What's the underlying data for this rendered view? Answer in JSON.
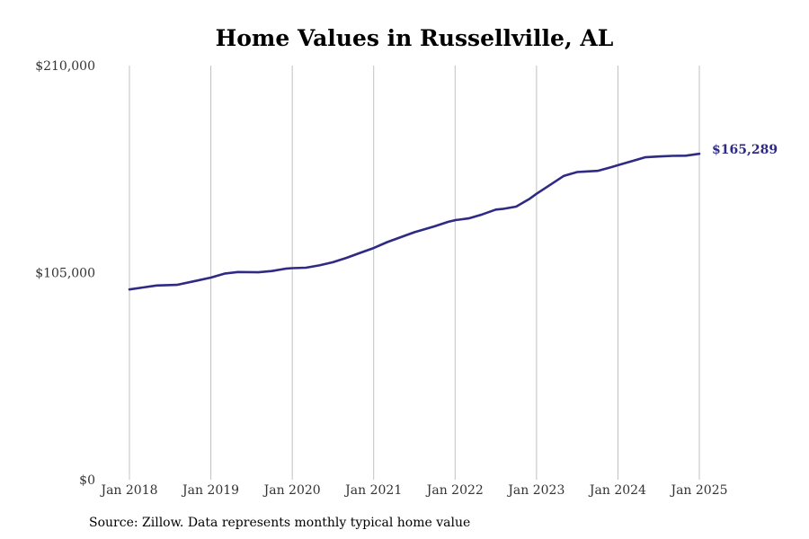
{
  "chart_data": {
    "type": "line",
    "title": "Home Values in Russellville, AL",
    "xlabel": "",
    "ylabel": "",
    "ylim": [
      0,
      210000
    ],
    "yticks": [
      {
        "value": 0,
        "label": "$0"
      },
      {
        "value": 105000,
        "label": "$105,000"
      },
      {
        "value": 210000,
        "label": "$210,000"
      }
    ],
    "xticks": [
      {
        "value": 2018,
        "label": "Jan 2018"
      },
      {
        "value": 2019,
        "label": "Jan 2019"
      },
      {
        "value": 2020,
        "label": "Jan 2020"
      },
      {
        "value": 2021,
        "label": "Jan 2021"
      },
      {
        "value": 2022,
        "label": "Jan 2022"
      },
      {
        "value": 2023,
        "label": "Jan 2023"
      },
      {
        "value": 2024,
        "label": "Jan 2024"
      },
      {
        "value": 2025,
        "label": "Jan 2025"
      }
    ],
    "xlim": [
      2018,
      2025
    ],
    "grid": "vertical",
    "line_color": "#2e2a85",
    "grid_color": "#c0c0c0",
    "end_label": "$165,289",
    "x": [
      2018.0,
      2018.167,
      2018.333,
      2018.583,
      2018.833,
      2019.0,
      2019.167,
      2019.333,
      2019.583,
      2019.75,
      2019.917,
      2020.0,
      2020.167,
      2020.333,
      2020.5,
      2020.667,
      2020.833,
      2021.0,
      2021.167,
      2021.333,
      2021.5,
      2021.75,
      2021.917,
      2022.0,
      2022.167,
      2022.333,
      2022.5,
      2022.583,
      2022.75,
      2022.917,
      2023.0,
      2023.167,
      2023.333,
      2023.5,
      2023.583,
      2023.75,
      2023.917,
      2024.0,
      2024.167,
      2024.333,
      2024.5,
      2024.667,
      2024.833,
      2025.0
    ],
    "values": [
      96500,
      97500,
      98500,
      98800,
      101000,
      102500,
      104500,
      105300,
      105200,
      105800,
      107000,
      107300,
      107500,
      108700,
      110300,
      112500,
      115000,
      117500,
      120500,
      123000,
      125500,
      128500,
      130800,
      131600,
      132500,
      134500,
      137000,
      137300,
      138500,
      142500,
      145000,
      149500,
      154000,
      156000,
      156200,
      156600,
      158500,
      159500,
      161500,
      163500,
      163900,
      164200,
      164300,
      165289
    ]
  },
  "source": "Source: Zillow. Data represents monthly typical home value"
}
